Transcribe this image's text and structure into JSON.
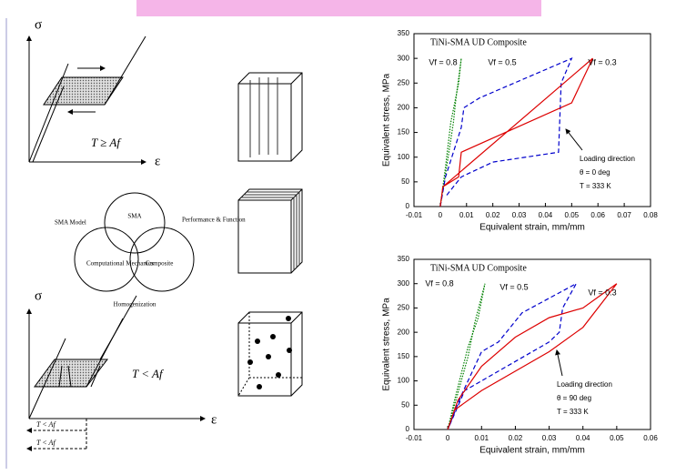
{
  "diagram": {
    "sigma_top": "σ",
    "epsilon_top": "ε",
    "cond_top": "T ≥ Af",
    "venn": {
      "center": "SMA",
      "left_top": "SMA Model",
      "right_top": "Performance & Function",
      "left": "Computational Mechanics",
      "right": "Composite",
      "bottom": "Homogenization"
    },
    "sigma_bottom": "σ",
    "epsilon_bottom": "ε",
    "cond_bottom": "T < Af",
    "arrow_1": "T < Af",
    "arrow_2": "T < Af"
  },
  "chart_data": [
    {
      "type": "line",
      "title": "TiNi-SMA UD Composite",
      "x_label": "Equivalent strain, mm/mm",
      "y_label": "Equivalent stress, MPa",
      "xlim": [
        -0.01,
        0.08
      ],
      "xticks": [
        -0.01,
        0,
        0.01,
        0.02,
        0.03,
        0.04,
        0.05,
        0.06,
        0.07,
        0.08
      ],
      "ylim": [
        0,
        350
      ],
      "yticks": [
        0,
        50,
        100,
        150,
        200,
        250,
        300,
        350
      ],
      "annotations": [
        "Loading direction",
        "θ = 0 deg",
        "T = 333 K"
      ],
      "series": [
        {
          "name": "Vf = 0.8",
          "color": "#008000",
          "dash": "1.5,1.5",
          "x": [
            0,
            0.003,
            0.005,
            0.006,
            0.007,
            0.008,
            0.007,
            0.004,
            0.002,
            0
          ],
          "values": [
            0,
            100,
            170,
            220,
            260,
            300,
            250,
            170,
            80,
            0
          ]
        },
        {
          "name": "Vf = 0.5",
          "color": "#0000cc",
          "dash": "5,3",
          "x": [
            0,
            0.002,
            0.008,
            0.009,
            0.015,
            0.05,
            0.046,
            0.045,
            0.02,
            0.008,
            0.002
          ],
          "values": [
            0,
            60,
            160,
            200,
            220,
            300,
            250,
            110,
            90,
            60,
            20
          ]
        },
        {
          "name": "Vf = 0.3",
          "color": "#dd0000",
          "dash": "",
          "x": [
            0,
            0.001,
            0.058,
            0.05,
            0.008,
            0.007,
            0.001
          ],
          "values": [
            0,
            40,
            300,
            210,
            110,
            60,
            40
          ]
        }
      ]
    },
    {
      "type": "line",
      "title": "TiNi-SMA UD Composite",
      "x_label": "Equivalent strain, mm/mm",
      "y_label": "Equivalent stress, MPa",
      "xlim": [
        -0.01,
        0.06
      ],
      "xticks": [
        -0.01,
        0,
        0.01,
        0.02,
        0.03,
        0.04,
        0.05,
        0.06
      ],
      "ylim": [
        0,
        350
      ],
      "yticks": [
        0,
        50,
        100,
        150,
        200,
        250,
        300,
        350
      ],
      "annotations": [
        "Loading direction",
        "θ = 90 deg",
        "T = 333 K"
      ],
      "series": [
        {
          "name": "Vf = 0.8",
          "color": "#008000",
          "dash": "1.5,1.5",
          "x": [
            0,
            0.006,
            0.008,
            0.011,
            0.009,
            0.006,
            0.002,
            0
          ],
          "values": [
            0,
            150,
            220,
            300,
            230,
            170,
            60,
            0
          ]
        },
        {
          "name": "Vf = 0.5",
          "color": "#0000cc",
          "dash": "5,3",
          "x": [
            0,
            0.004,
            0.01,
            0.015,
            0.022,
            0.038,
            0.034,
            0.033,
            0.03,
            0.02,
            0.005,
            0
          ],
          "values": [
            0,
            70,
            160,
            180,
            240,
            300,
            250,
            200,
            180,
            140,
            80,
            0
          ]
        },
        {
          "name": "Vf = 0.3",
          "color": "#dd0000",
          "dash": "",
          "x": [
            0,
            0.002,
            0.01,
            0.03,
            0.04,
            0.05,
            0.04,
            0.03,
            0.02,
            0.01,
            0.003,
            0
          ],
          "values": [
            0,
            40,
            80,
            160,
            210,
            300,
            250,
            230,
            190,
            130,
            60,
            0
          ]
        }
      ]
    }
  ]
}
